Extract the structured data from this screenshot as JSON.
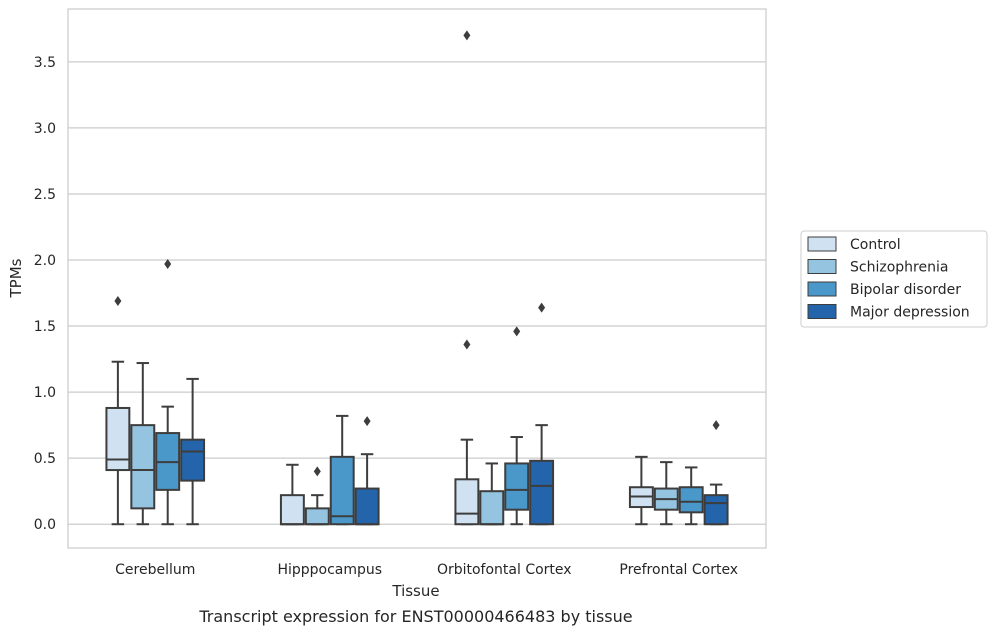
{
  "chart_data": {
    "type": "boxplot",
    "caption": "Transcript expression for ENST00000466483 by tissue",
    "xlabel": "Tissue",
    "ylabel": "TPMs",
    "ylim": [
      -0.18,
      3.9
    ],
    "yticks": [
      0.0,
      0.5,
      1.0,
      1.5,
      2.0,
      2.5,
      3.0,
      3.5
    ],
    "ytick_labels": [
      "0.0",
      "0.5",
      "1.0",
      "1.5",
      "2.0",
      "2.5",
      "3.0",
      "3.5"
    ],
    "grid": "horizontal",
    "legend_position": "right",
    "categories": [
      "Cerebellum",
      "Hipppocampus",
      "Orbitofontal Cortex",
      "Prefrontal Cortex"
    ],
    "series": [
      {
        "name": "Control",
        "color": "#d0e1f2",
        "boxes": [
          {
            "whislo": 0.0,
            "q1": 0.41,
            "med": 0.49,
            "q3": 0.88,
            "whishi": 1.23,
            "fliers": [
              1.69
            ]
          },
          {
            "whislo": 0.0,
            "q1": 0.0,
            "med": 0.0,
            "q3": 0.22,
            "whishi": 0.45,
            "fliers": []
          },
          {
            "whislo": 0.0,
            "q1": 0.0,
            "med": 0.08,
            "q3": 0.34,
            "whishi": 0.64,
            "fliers": [
              1.36,
              3.7
            ]
          },
          {
            "whislo": 0.0,
            "q1": 0.13,
            "med": 0.21,
            "q3": 0.28,
            "whishi": 0.51,
            "fliers": []
          }
        ]
      },
      {
        "name": "Schizophrenia",
        "color": "#94c4df",
        "boxes": [
          {
            "whislo": 0.0,
            "q1": 0.12,
            "med": 0.41,
            "q3": 0.75,
            "whishi": 1.22,
            "fliers": []
          },
          {
            "whislo": 0.0,
            "q1": 0.0,
            "med": 0.0,
            "q3": 0.12,
            "whishi": 0.22,
            "fliers": [
              0.4
            ]
          },
          {
            "whislo": 0.0,
            "q1": 0.0,
            "med": 0.0,
            "q3": 0.25,
            "whishi": 0.46,
            "fliers": []
          },
          {
            "whislo": 0.0,
            "q1": 0.11,
            "med": 0.19,
            "q3": 0.27,
            "whishi": 0.47,
            "fliers": []
          }
        ]
      },
      {
        "name": "Bipolar disorder",
        "color": "#4a98c9",
        "boxes": [
          {
            "whislo": 0.0,
            "q1": 0.26,
            "med": 0.47,
            "q3": 0.69,
            "whishi": 0.89,
            "fliers": [
              1.97
            ]
          },
          {
            "whislo": 0.0,
            "q1": 0.0,
            "med": 0.06,
            "q3": 0.51,
            "whishi": 0.82,
            "fliers": []
          },
          {
            "whislo": 0.0,
            "q1": 0.11,
            "med": 0.26,
            "q3": 0.46,
            "whishi": 0.66,
            "fliers": [
              1.46
            ]
          },
          {
            "whislo": 0.0,
            "q1": 0.09,
            "med": 0.17,
            "q3": 0.28,
            "whishi": 0.43,
            "fliers": []
          }
        ]
      },
      {
        "name": "Major depression",
        "color": "#2364aa",
        "boxes": [
          {
            "whislo": 0.0,
            "q1": 0.33,
            "med": 0.55,
            "q3": 0.64,
            "whishi": 1.1,
            "fliers": []
          },
          {
            "whislo": 0.0,
            "q1": 0.0,
            "med": 0.0,
            "q3": 0.27,
            "whishi": 0.53,
            "fliers": [
              0.78
            ]
          },
          {
            "whislo": 0.0,
            "q1": 0.0,
            "med": 0.29,
            "q3": 0.48,
            "whishi": 0.75,
            "fliers": [
              1.64
            ]
          },
          {
            "whislo": 0.0,
            "q1": 0.0,
            "med": 0.16,
            "q3": 0.22,
            "whishi": 0.3,
            "fliers": [
              0.75
            ]
          }
        ]
      }
    ]
  }
}
